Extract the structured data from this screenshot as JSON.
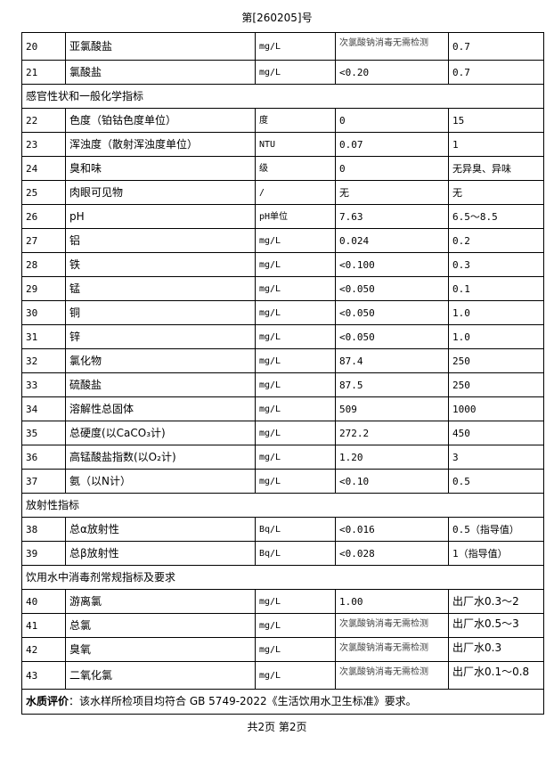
{
  "header": "第[260205]号",
  "rows": [
    {
      "type": "row",
      "no": "20",
      "item": "亚氯酸盐",
      "unit": "mg/L",
      "result": "次氯酸钠消毒无需检测",
      "limit": "0.7"
    },
    {
      "type": "row",
      "no": "21",
      "item": "氯酸盐",
      "unit": "mg/L",
      "result": "<0.20",
      "limit": "0.7"
    },
    {
      "type": "section",
      "label": "感官性状和一般化学指标"
    },
    {
      "type": "row",
      "no": "22",
      "item": "色度（铂钴色度单位）",
      "unit": "度",
      "result": "0",
      "limit": "15"
    },
    {
      "type": "row",
      "no": "23",
      "item": "浑浊度（散射浑浊度单位）",
      "unit": "NTU",
      "result": "0.07",
      "limit": "1"
    },
    {
      "type": "row",
      "no": "24",
      "item": "臭和味",
      "unit": "级",
      "result": "0",
      "limit": "无异臭、异味"
    },
    {
      "type": "row",
      "no": "25",
      "item": "肉眼可见物",
      "unit": "/",
      "result": "无",
      "limit": "无"
    },
    {
      "type": "row",
      "no": "26",
      "item": "pH",
      "unit": "pH单位",
      "result": "7.63",
      "limit": "6.5～8.5"
    },
    {
      "type": "row",
      "no": "27",
      "item": "铝",
      "unit": "mg/L",
      "result": "0.024",
      "limit": "0.2"
    },
    {
      "type": "row",
      "no": "28",
      "item": "铁",
      "unit": "mg/L",
      "result": "<0.100",
      "limit": "0.3"
    },
    {
      "type": "row",
      "no": "29",
      "item": "锰",
      "unit": "mg/L",
      "result": "<0.050",
      "limit": "0.1"
    },
    {
      "type": "row",
      "no": "30",
      "item": "铜",
      "unit": "mg/L",
      "result": "<0.050",
      "limit": "1.0"
    },
    {
      "type": "row",
      "no": "31",
      "item": "锌",
      "unit": "mg/L",
      "result": "<0.050",
      "limit": "1.0"
    },
    {
      "type": "row",
      "no": "32",
      "item": "氯化物",
      "unit": "mg/L",
      "result": "87.4",
      "limit": "250"
    },
    {
      "type": "row",
      "no": "33",
      "item": "硫酸盐",
      "unit": "mg/L",
      "result": "87.5",
      "limit": "250"
    },
    {
      "type": "row",
      "no": "34",
      "item": "溶解性总固体",
      "unit": "mg/L",
      "result": "509",
      "limit": "1000"
    },
    {
      "type": "row",
      "no": "35",
      "item": "总硬度(以CaCO₃计)",
      "unit": "mg/L",
      "result": "272.2",
      "limit": "450"
    },
    {
      "type": "row",
      "no": "36",
      "item": "高锰酸盐指数(以O₂计)",
      "unit": "mg/L",
      "result": "1.20",
      "limit": "3"
    },
    {
      "type": "row",
      "no": "37",
      "item": "氨（以N计）",
      "unit": "mg/L",
      "result": "<0.10",
      "limit": "0.5"
    },
    {
      "type": "section",
      "label": "放射性指标"
    },
    {
      "type": "row",
      "no": "38",
      "item": "总α放射性",
      "unit": "Bq/L",
      "result": "<0.016",
      "limit": "0.5（指导值）"
    },
    {
      "type": "row",
      "no": "39",
      "item": "总β放射性",
      "unit": "Bq/L",
      "result": "<0.028",
      "limit": "1（指导值）"
    },
    {
      "type": "section",
      "label": "饮用水中消毒剂常规指标及要求"
    },
    {
      "type": "row",
      "no": "40",
      "item": "游离氯",
      "unit": "mg/L",
      "result": "1.00",
      "limit": "出厂水0.3～2"
    },
    {
      "type": "row",
      "no": "41",
      "item": "总氯",
      "unit": "mg/L",
      "result": "次氯酸钠消毒无需检测",
      "limit": "出厂水0.5～3"
    },
    {
      "type": "row",
      "no": "42",
      "item": "臭氧",
      "unit": "mg/L",
      "result": "次氯酸钠消毒无需检测",
      "limit": "出厂水0.3"
    },
    {
      "type": "row",
      "no": "43",
      "item": "二氧化氯",
      "unit": "mg/L",
      "result": "次氯酸钠消毒无需检测",
      "limit": "出厂水0.1～0.8"
    }
  ],
  "evaluation": {
    "label": "水质评价",
    "text": "：该水样所检项目均符合 GB  5749-2022《生活饮用水卫生标准》要求。"
  },
  "footer": "共2页 第2页"
}
